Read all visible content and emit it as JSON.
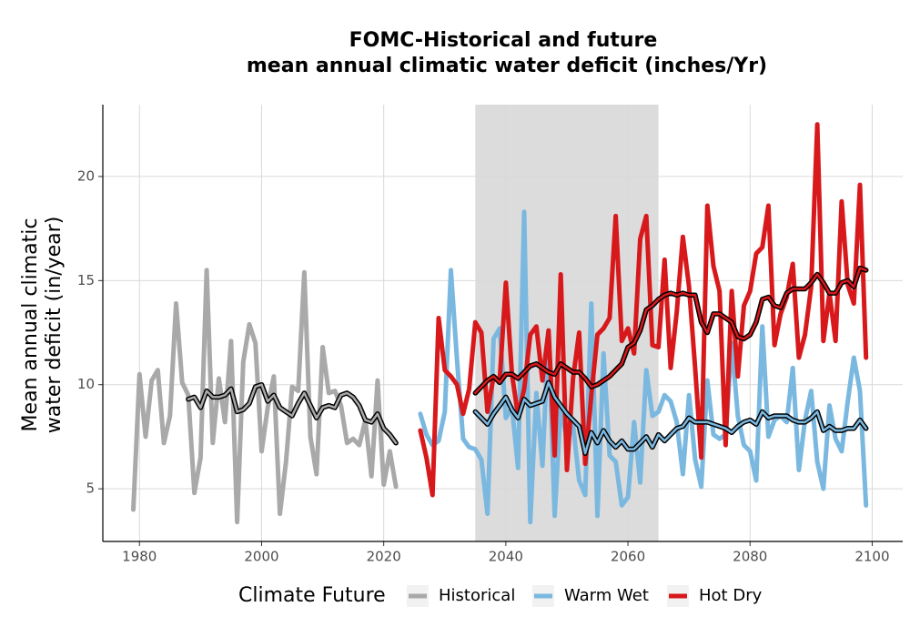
{
  "chart_data": {
    "type": "line",
    "title": [
      "FOMC-Historical and future",
      "mean annual climatic water deficit (inches/Yr)"
    ],
    "ylabel": [
      "Mean annual climatic",
      "water deficit (in/year)"
    ],
    "legend_title": "Climate Future",
    "legend": "bottom",
    "grid": true,
    "shade": [
      2035,
      2065
    ],
    "xlim": [
      1974,
      2105
    ],
    "ylim": [
      2.47,
      23.45
    ],
    "xticks": [
      1980,
      2000,
      2020,
      2040,
      2060,
      2080,
      2100
    ],
    "yticks": [
      5,
      10,
      15,
      20
    ],
    "series": [
      {
        "name": "Historical",
        "color": "#a9a9a9",
        "x": [
          1979,
          1980,
          1981,
          1982,
          1983,
          1984,
          1985,
          1986,
          1987,
          1988,
          1989,
          1990,
          1991,
          1992,
          1993,
          1994,
          1995,
          1996,
          1997,
          1998,
          1999,
          2000,
          2001,
          2002,
          2003,
          2004,
          2005,
          2006,
          2007,
          2008,
          2009,
          2010,
          2011,
          2012,
          2013,
          2014,
          2015,
          2016,
          2017,
          2018,
          2019,
          2020,
          2021,
          2022
        ],
        "values": [
          4.0,
          10.5,
          7.5,
          10.2,
          10.7,
          7.2,
          8.5,
          13.9,
          10.1,
          9.5,
          4.8,
          6.5,
          15.5,
          7.2,
          10.3,
          8.2,
          12.1,
          3.4,
          11.1,
          12.9,
          12.0,
          6.8,
          8.9,
          10.4,
          3.8,
          6.3,
          9.9,
          9.7,
          15.4,
          7.5,
          5.7,
          11.8,
          9.6,
          9.7,
          9.0,
          7.2,
          7.4,
          7.1,
          8.3,
          5.6,
          10.2,
          5.2,
          6.8,
          5.1
        ],
        "trend": [
          null,
          null,
          null,
          null,
          null,
          null,
          null,
          null,
          null,
          9.3,
          9.4,
          8.9,
          9.7,
          9.4,
          9.4,
          9.5,
          9.8,
          8.7,
          8.8,
          9.1,
          9.9,
          10.0,
          9.2,
          9.5,
          8.9,
          8.7,
          8.5,
          9.1,
          9.6,
          9.0,
          8.4,
          8.9,
          9.0,
          8.9,
          9.5,
          9.6,
          9.4,
          9.0,
          8.3,
          8.2,
          8.6,
          7.9,
          7.6,
          7.2
        ]
      },
      {
        "name": "Warm Wet",
        "color": "#7bb8e0",
        "x": [
          2026,
          2027,
          2028,
          2029,
          2030,
          2031,
          2032,
          2033,
          2034,
          2035,
          2036,
          2037,
          2038,
          2039,
          2040,
          2041,
          2042,
          2043,
          2044,
          2045,
          2046,
          2047,
          2048,
          2049,
          2050,
          2051,
          2052,
          2053,
          2054,
          2055,
          2056,
          2057,
          2058,
          2059,
          2060,
          2061,
          2062,
          2063,
          2064,
          2065,
          2066,
          2067,
          2068,
          2069,
          2070,
          2071,
          2072,
          2073,
          2074,
          2075,
          2076,
          2077,
          2078,
          2079,
          2080,
          2081,
          2082,
          2083,
          2084,
          2085,
          2086,
          2087,
          2088,
          2089,
          2090,
          2091,
          2092,
          2093,
          2094,
          2095,
          2096,
          2097,
          2098,
          2099
        ],
        "values": [
          8.6,
          7.6,
          7.1,
          7.3,
          8.7,
          15.5,
          11.2,
          7.4,
          7.0,
          6.9,
          6.4,
          3.8,
          12.2,
          12.7,
          8.4,
          8.9,
          6.0,
          18.3,
          3.4,
          9.6,
          6.1,
          12.6,
          3.7,
          9.0,
          7.3,
          8.1,
          5.4,
          4.7,
          13.9,
          3.7,
          11.5,
          6.6,
          6.3,
          4.2,
          4.6,
          8.2,
          5.3,
          10.7,
          8.5,
          8.7,
          9.5,
          9.2,
          8.2,
          5.7,
          9.5,
          6.4,
          5.1,
          10.2,
          7.6,
          7.4,
          7.6,
          12.0,
          8.5,
          7.1,
          6.8,
          5.4,
          12.8,
          7.5,
          8.3,
          8.5,
          8.2,
          10.8,
          5.9,
          8.3,
          9.7,
          6.3,
          5.0,
          9.0,
          7.4,
          6.8,
          9.2,
          11.3,
          9.7,
          4.2
        ],
        "trend": [
          null,
          null,
          null,
          null,
          null,
          null,
          null,
          null,
          null,
          8.7,
          8.4,
          8.1,
          8.6,
          9.0,
          9.4,
          8.8,
          8.4,
          9.3,
          9.0,
          9.1,
          9.2,
          10.1,
          9.4,
          9.0,
          8.6,
          8.3,
          8.0,
          6.7,
          7.7,
          7.2,
          7.8,
          7.3,
          7.0,
          7.3,
          6.9,
          6.9,
          7.2,
          7.5,
          7.0,
          7.6,
          7.3,
          7.6,
          7.9,
          8.0,
          8.4,
          8.2,
          8.2,
          8.2,
          8.1,
          8.0,
          7.9,
          7.7,
          8.0,
          8.2,
          8.3,
          8.1,
          8.7,
          8.4,
          8.5,
          8.5,
          8.5,
          8.3,
          8.2,
          8.2,
          8.4,
          8.7,
          7.8,
          8.0,
          7.8,
          7.8,
          7.9,
          7.9,
          8.3,
          7.9
        ]
      },
      {
        "name": "Hot Dry",
        "color": "#d7191c",
        "x": [
          2026,
          2027,
          2028,
          2029,
          2030,
          2031,
          2032,
          2033,
          2034,
          2035,
          2036,
          2037,
          2038,
          2039,
          2040,
          2041,
          2042,
          2043,
          2044,
          2045,
          2046,
          2047,
          2048,
          2049,
          2050,
          2051,
          2052,
          2053,
          2054,
          2055,
          2056,
          2057,
          2058,
          2059,
          2060,
          2061,
          2062,
          2063,
          2064,
          2065,
          2066,
          2067,
          2068,
          2069,
          2070,
          2071,
          2072,
          2073,
          2074,
          2075,
          2076,
          2077,
          2078,
          2079,
          2080,
          2081,
          2082,
          2083,
          2084,
          2085,
          2086,
          2087,
          2088,
          2089,
          2090,
          2091,
          2092,
          2093,
          2094,
          2095,
          2096,
          2097,
          2098,
          2099
        ],
        "values": [
          7.8,
          6.5,
          4.7,
          13.2,
          10.7,
          10.4,
          10.0,
          8.6,
          9.8,
          13.0,
          12.5,
          8.7,
          10.4,
          10.2,
          14.9,
          10.5,
          8.5,
          9.8,
          12.4,
          12.8,
          10.2,
          12.6,
          6.6,
          15.3,
          5.9,
          10.3,
          12.5,
          6.2,
          9.5,
          12.4,
          12.7,
          13.2,
          18.1,
          12.1,
          12.7,
          11.5,
          17.0,
          18.1,
          11.9,
          11.8,
          16.0,
          10.8,
          13.5,
          17.1,
          14.7,
          10.8,
          6.5,
          18.6,
          15.7,
          14.5,
          7.1,
          14.5,
          10.4,
          13.8,
          14.5,
          16.3,
          16.6,
          18.6,
          11.9,
          13.4,
          14.2,
          15.8,
          11.3,
          12.4,
          14.7,
          22.5,
          12.1,
          14.4,
          12.1,
          18.8,
          14.8,
          13.9,
          19.6,
          11.3
        ],
        "trend": [
          null,
          null,
          null,
          null,
          null,
          null,
          null,
          null,
          null,
          9.6,
          9.9,
          10.2,
          10.4,
          10.1,
          10.5,
          10.5,
          10.3,
          10.6,
          10.9,
          11.0,
          10.8,
          10.6,
          10.5,
          11.0,
          10.8,
          10.6,
          10.6,
          10.3,
          9.9,
          10.0,
          10.2,
          10.4,
          10.7,
          11.0,
          11.8,
          12.0,
          12.6,
          13.6,
          13.8,
          14.1,
          14.3,
          14.4,
          14.3,
          14.4,
          14.3,
          14.3,
          13.0,
          12.5,
          13.4,
          13.4,
          13.2,
          13.0,
          12.3,
          12.2,
          12.4,
          13.0,
          14.1,
          14.2,
          13.8,
          13.7,
          14.4,
          14.6,
          14.6,
          14.6,
          14.9,
          15.3,
          14.9,
          14.4,
          14.4,
          14.9,
          15.0,
          14.7,
          15.6,
          15.5
        ]
      }
    ]
  }
}
